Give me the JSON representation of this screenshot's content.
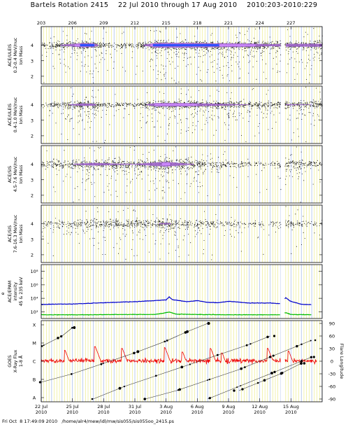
{
  "header": {
    "title": "Bartels Rotation 2415    22 Jul 2010 through 17 Aug 2010    2010:203-2010:229"
  },
  "footer": {
    "text": "Fri Oct  8 17:49:09 2010   /home/alr4/mew/idl/mw/sis055/sis055oo_2415.ps"
  },
  "colors": {
    "grid_yellow": "#e8e870",
    "grid_blue": "#9fb8e8",
    "scatter": "#000000",
    "density_low": "#9d63c9",
    "density_mid": "#cc88ff",
    "density_high": "#3050ff",
    "electrons_blue": "#0000cc",
    "electrons_green": "#00bb00",
    "xray": "#ee0000"
  },
  "chart_data": {
    "type": "scatter",
    "time_range": [
      "2010-07-22",
      "2010-08-17"
    ],
    "day_numbers": [
      "203",
      "206",
      "209",
      "212",
      "215",
      "218",
      "221",
      "224",
      "227"
    ],
    "bottom_tick_dates": [
      "22 Jul\n2010",
      "25 Jul\n2010",
      "28 Jul\n2010",
      "31 Jul\n2010",
      "3 Aug\n2010",
      "6 Aug\n2010",
      "9 Aug\n2010",
      "12 Aug\n2010",
      "15 Aug\n2010"
    ],
    "data_gap_day_of_year": [
      226.0,
      226.4
    ],
    "panels": [
      {
        "label": "ACE/ULEIS\n0.2-0.4 MeV/nuc\nIon Mass",
        "ylim": [
          1.5,
          5.2
        ],
        "yticks": [
          "2",
          "3",
          "4"
        ],
        "populations": [
          {
            "mass": 4,
            "spread": 0.12,
            "intensity_by_day": [
              [
                203,
                0.25
              ],
              [
                207,
                0.95
              ],
              [
                208,
                0.9
              ],
              [
                209,
                0.3
              ],
              [
                212,
                0.3
              ],
              [
                214,
                1.0
              ],
              [
                217,
                1.0
              ],
              [
                220,
                0.9
              ],
              [
                223,
                0.85
              ],
              [
                225,
                0.7
              ],
              [
                226.5,
                0.8
              ],
              [
                229,
                0.8
              ]
            ]
          }
        ]
      },
      {
        "label": "ACE/ULEIS\n0.4-1.0 MeV/nuc\nIon Mass",
        "ylim": [
          1.5,
          5.2
        ],
        "yticks": [
          "2",
          "3",
          "4"
        ],
        "populations": [
          {
            "mass": 4,
            "spread": 0.12,
            "intensity_by_day": [
              [
                203,
                0.2
              ],
              [
                207,
                0.75
              ],
              [
                208,
                0.7
              ],
              [
                209,
                0.25
              ],
              [
                212,
                0.25
              ],
              [
                214,
                0.85
              ],
              [
                217,
                0.85
              ],
              [
                220,
                0.7
              ],
              [
                223,
                0.55
              ],
              [
                225,
                0.4
              ],
              [
                226.5,
                0.6
              ],
              [
                229,
                0.55
              ]
            ]
          }
        ]
      },
      {
        "label": "ACE/SIS\n4.5-7.6 MeV/nuc\nIon Mass",
        "ylim": [
          1.5,
          5.2
        ],
        "yticks": [
          "2",
          "3",
          "4"
        ],
        "populations": [
          {
            "mass": 4,
            "spread": 0.17,
            "intensity_by_day": [
              [
                203,
                0.3
              ],
              [
                206,
                0.55
              ],
              [
                208,
                0.7
              ],
              [
                210,
                0.6
              ],
              [
                212,
                0.55
              ],
              [
                215,
                0.85
              ],
              [
                217,
                0.6
              ],
              [
                220,
                0.4
              ],
              [
                222,
                0.2
              ],
              [
                225,
                0.1
              ],
              [
                226.5,
                0.5
              ],
              [
                229,
                0.3
              ]
            ]
          }
        ]
      },
      {
        "label": "ACE/SIS\n7.6-16.3 MeV/nuc\nIon Mass",
        "ylim": [
          1.5,
          5.2
        ],
        "yticks": [
          "2",
          "3",
          "4"
        ],
        "populations": [
          {
            "mass": 4,
            "spread": 0.18,
            "intensity_by_day": [
              [
                203,
                0.2
              ],
              [
                206,
                0.4
              ],
              [
                208,
                0.5
              ],
              [
                210,
                0.4
              ],
              [
                212,
                0.4
              ],
              [
                215,
                0.6
              ],
              [
                217,
                0.4
              ],
              [
                220,
                0.3
              ],
              [
                222,
                0.15
              ],
              [
                225,
                0.08
              ],
              [
                226.5,
                0.3
              ],
              [
                229,
                0.15
              ]
            ]
          }
        ]
      },
      {
        "label": "ACE/EPAM\nintensity\n45 & 235 keV",
        "ylabel_prefix": "e",
        "log_ylim": [
          1,
          9
        ],
        "yticks": [
          "10²",
          "10⁴",
          "10⁶",
          "10⁸"
        ],
        "series": [
          {
            "points": [
              [
                203,
                3.1
              ],
              [
                206,
                3.15
              ],
              [
                209,
                3.35
              ],
              [
                212,
                3.5
              ],
              [
                215,
                3.75
              ],
              [
                215.3,
                4.2
              ],
              [
                215.6,
                3.8
              ],
              [
                217,
                3.5
              ],
              [
                218,
                3.65
              ],
              [
                219,
                3.4
              ],
              [
                220,
                3.35
              ],
              [
                221,
                3.55
              ],
              [
                223,
                3.3
              ],
              [
                225,
                3.3
              ],
              [
                226,
                3.2
              ],
              [
                226.5,
                4.1
              ],
              [
                226.9,
                3.6
              ],
              [
                228,
                3.1
              ],
              [
                229,
                3.05
              ]
            ]
          },
          {
            "points": [
              [
                203,
                1.55
              ],
              [
                205,
                1.55
              ],
              [
                208,
                1.55
              ],
              [
                211,
                1.6
              ],
              [
                214,
                1.6
              ],
              [
                215.3,
                1.95
              ],
              [
                216,
                1.65
              ],
              [
                218,
                1.6
              ],
              [
                221,
                1.55
              ],
              [
                224,
                1.55
              ],
              [
                226,
                1.55
              ],
              [
                226.5,
                1.85
              ],
              [
                227,
                1.6
              ],
              [
                229,
                1.55
              ]
            ]
          }
        ]
      },
      {
        "label": "GOES\nX-Ray Flux\n1-8 Å",
        "flare_classes": [
          "A",
          "B",
          "C",
          "M",
          "X"
        ],
        "right_axis_label": "Flare Longitude",
        "right_ticks": [
          "90",
          "60",
          "30",
          "0",
          "-30",
          "-60",
          "-90"
        ],
        "right_lim": [
          -90,
          90
        ],
        "xray_log_flux": {
          "background": -6.0,
          "spikes": [
            [
              205.3,
              -5.4
            ],
            [
              208.2,
              -5.2
            ],
            [
              210.8,
              -5.3
            ],
            [
              214.9,
              -5.25
            ],
            [
              216.6,
              -5.5
            ],
            [
              219.3,
              -5.3
            ],
            [
              220.4,
              -5.55
            ],
            [
              224.8,
              -5.3
            ],
            [
              226.8,
              -5.45
            ]
          ]
        },
        "flare_longitude_tracks": [
          {
            "points": [
              [
                203,
                35
              ],
              [
                205,
                60
              ],
              [
                206,
                80
              ]
            ]
          },
          {
            "points": [
              [
                203,
                -50
              ],
              [
                206,
                -30
              ],
              [
                209,
                -5
              ],
              [
                212,
                20
              ],
              [
                215,
                48
              ],
              [
                217,
                70
              ],
              [
                219,
                90
              ]
            ]
          },
          {
            "points": [
              [
                208,
                -90
              ],
              [
                211,
                -60
              ],
              [
                214,
                -35
              ],
              [
                217,
                -10
              ],
              [
                220,
                15
              ],
              [
                223,
                40
              ],
              [
                225,
                60
              ]
            ]
          },
          {
            "points": [
              [
                213,
                -90
              ],
              [
                216,
                -70
              ],
              [
                219,
                -45
              ],
              [
                222,
                -20
              ],
              [
                225,
                10
              ],
              [
                228,
                40
              ],
              [
                229,
                50
              ]
            ]
          },
          {
            "points": [
              [
                219,
                -90
              ],
              [
                222,
                -60
              ],
              [
                225,
                -30
              ],
              [
                228,
                0
              ],
              [
                229,
                10
              ]
            ]
          },
          {
            "points": [
              [
                222,
                -70
              ],
              [
                224,
                -50
              ],
              [
                226,
                -30
              ],
              [
                228,
                -5
              ]
            ]
          }
        ]
      }
    ]
  }
}
